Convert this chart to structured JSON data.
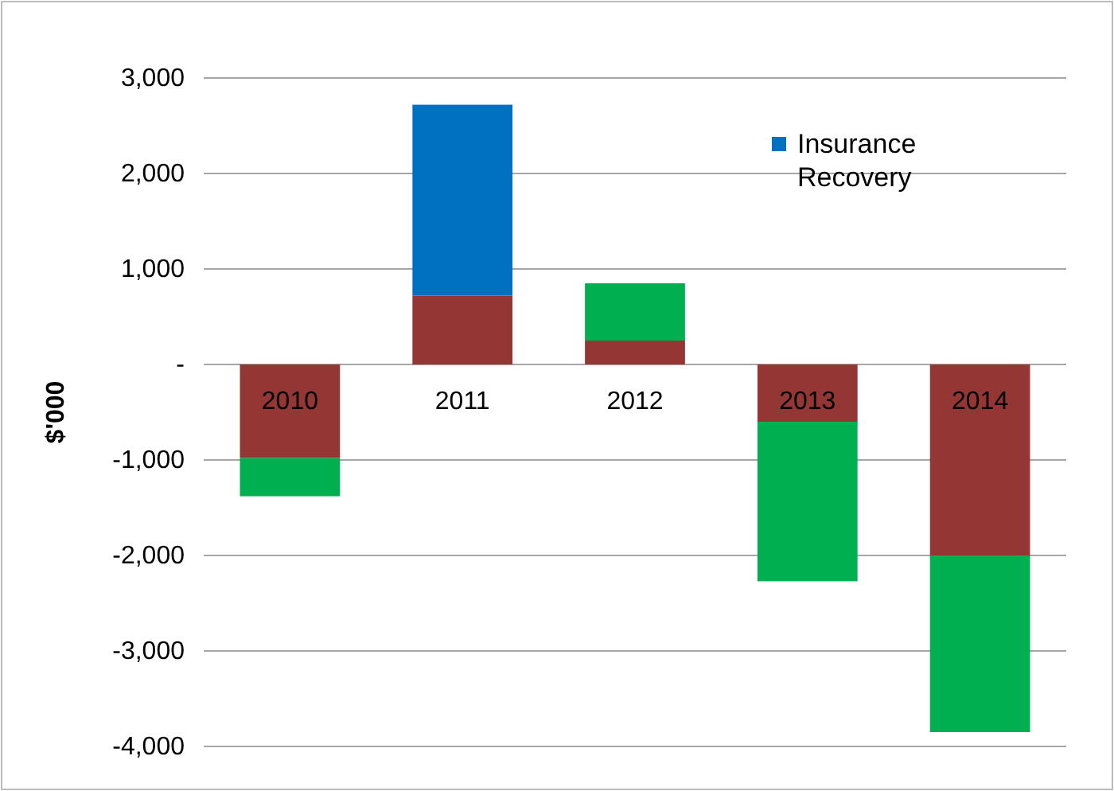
{
  "chart_data": {
    "type": "bar",
    "stacked": true,
    "ylabel": "$'000",
    "categories": [
      "2010",
      "2011",
      "2012",
      "2013",
      "2014"
    ],
    "series": [
      {
        "color": "#943634",
        "values": [
          -980,
          720,
          250,
          -600,
          -2000
        ]
      },
      {
        "color": "#00b050",
        "values": [
          -400,
          null,
          600,
          -1670,
          -1850
        ]
      },
      {
        "name": "Insurance Recovery",
        "color": "#0070c0",
        "values": [
          null,
          2000,
          null,
          null,
          null
        ]
      }
    ],
    "ylim": [
      -4000,
      3000
    ],
    "yticks": [
      {
        "value": -4000,
        "label": "-4,000"
      },
      {
        "value": -3000,
        "label": "-3,000"
      },
      {
        "value": -2000,
        "label": "-2,000"
      },
      {
        "value": -1000,
        "label": "-1,000"
      },
      {
        "value": 0,
        "label": "-"
      },
      {
        "value": 1000,
        "label": "1,000"
      },
      {
        "value": 2000,
        "label": "2,000"
      },
      {
        "value": 3000,
        "label": "3,000"
      }
    ],
    "grid": "y",
    "legend": "top right"
  }
}
